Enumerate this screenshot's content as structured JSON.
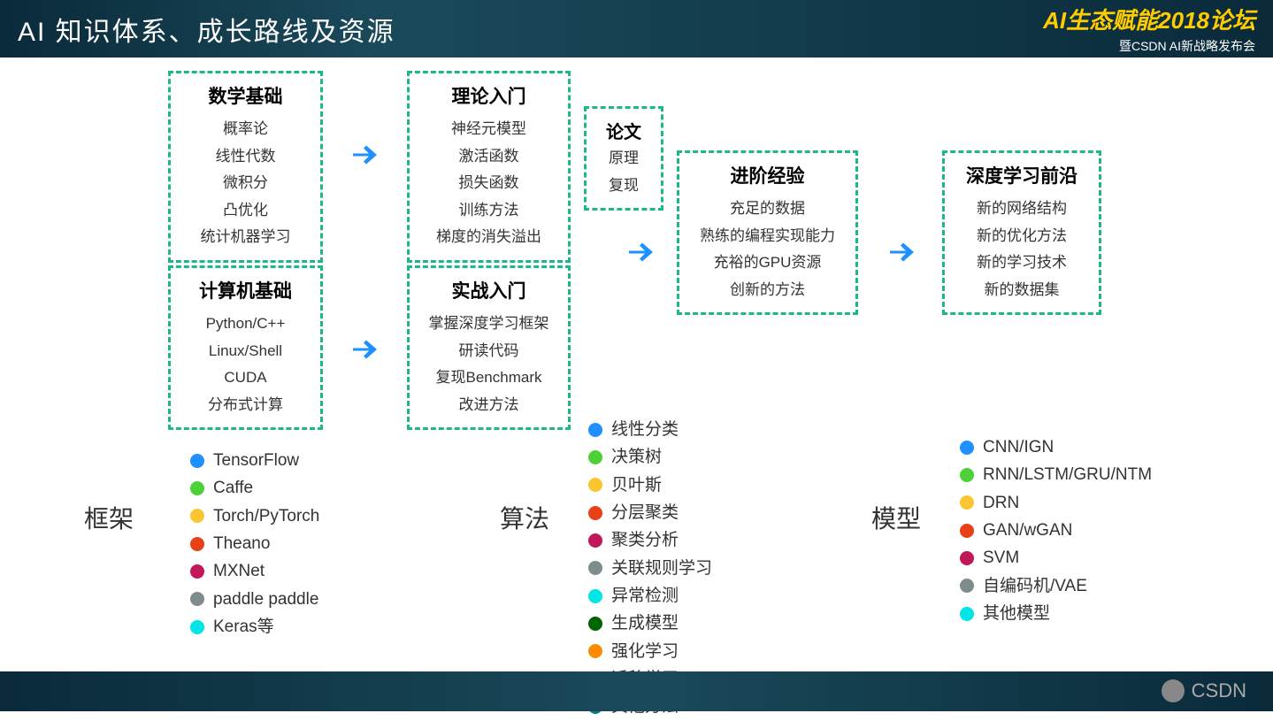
{
  "header": {
    "title": "AI 知识体系、成长路线及资源",
    "logo_main": "AI生态赋能2018论坛",
    "logo_sub": "暨CSDN AI新战略发布会"
  },
  "footer": {
    "brand": "CSDN"
  },
  "boxes": {
    "math": {
      "title": "数学基础",
      "items": [
        "概率论",
        "线性代数",
        "微积分",
        "凸优化",
        "统计机器学习"
      ]
    },
    "cs": {
      "title": "计算机基础",
      "items": [
        "Python/C++",
        "Linux/Shell",
        "CUDA",
        "分布式计算"
      ]
    },
    "theory": {
      "title": "理论入门",
      "items": [
        "神经元模型",
        "激活函数",
        "损失函数",
        "训练方法",
        "梯度的消失溢出"
      ]
    },
    "practice": {
      "title": "实战入门",
      "items": [
        "掌握深度学习框架",
        "研读代码",
        "复现Benchmark",
        "改进方法"
      ]
    },
    "paper": {
      "title": "论文",
      "items": [
        "原理",
        "复现"
      ]
    },
    "advanced": {
      "title": "进阶经验",
      "items": [
        "充足的数据",
        "熟练的编程实现能力",
        "充裕的GPU资源",
        "创新的方法"
      ]
    },
    "frontier": {
      "title": "深度学习前沿",
      "items": [
        "新的网络结构",
        "新的优化方法",
        "新的学习技术",
        "新的数据集"
      ]
    }
  },
  "legends": {
    "frameworks": {
      "title": "框架",
      "items": [
        {
          "color": "#1e90ff",
          "label": "TensorFlow"
        },
        {
          "color": "#4cd137",
          "label": "Caffe"
        },
        {
          "color": "#fbc531",
          "label": "Torch/PyTorch"
        },
        {
          "color": "#e84118",
          "label": "Theano"
        },
        {
          "color": "#c2185b",
          "label": "MXNet"
        },
        {
          "color": "#7f8c8d",
          "label": "paddle paddle"
        },
        {
          "color": "#00e5e5",
          "label": "Keras等"
        }
      ]
    },
    "algorithms": {
      "title": "算法",
      "items": [
        {
          "color": "#1e90ff",
          "label": "线性分类"
        },
        {
          "color": "#4cd137",
          "label": "决策树"
        },
        {
          "color": "#fbc531",
          "label": "贝叶斯"
        },
        {
          "color": "#e84118",
          "label": "分层聚类"
        },
        {
          "color": "#c2185b",
          "label": "聚类分析"
        },
        {
          "color": "#7f8c8d",
          "label": "关联规则学习"
        },
        {
          "color": "#00e5e5",
          "label": "异常检测"
        },
        {
          "color": "#006400",
          "label": "生成模型"
        },
        {
          "color": "#ff8c00",
          "label": "强化学习"
        },
        {
          "color": "#00008b",
          "label": "迁移学习"
        },
        {
          "color": "#008080",
          "label": "其他方法"
        }
      ]
    },
    "models": {
      "title": "模型",
      "items": [
        {
          "color": "#1e90ff",
          "label": "CNN/IGN"
        },
        {
          "color": "#4cd137",
          "label": "RNN/LSTM/GRU/NTM"
        },
        {
          "color": "#fbc531",
          "label": "DRN"
        },
        {
          "color": "#e84118",
          "label": "GAN/wGAN"
        },
        {
          "color": "#c2185b",
          "label": "SVM"
        },
        {
          "color": "#7f8c8d",
          "label": "自编码机/VAE"
        },
        {
          "color": "#00e5e5",
          "label": "其他模型"
        }
      ]
    }
  },
  "styles": {
    "box_border_color": "#1cb88c",
    "arrow_color": "#1e90ff",
    "background": "#ffffff",
    "header_bg": "#0a2a3a",
    "logo_color": "#ffcc00"
  }
}
